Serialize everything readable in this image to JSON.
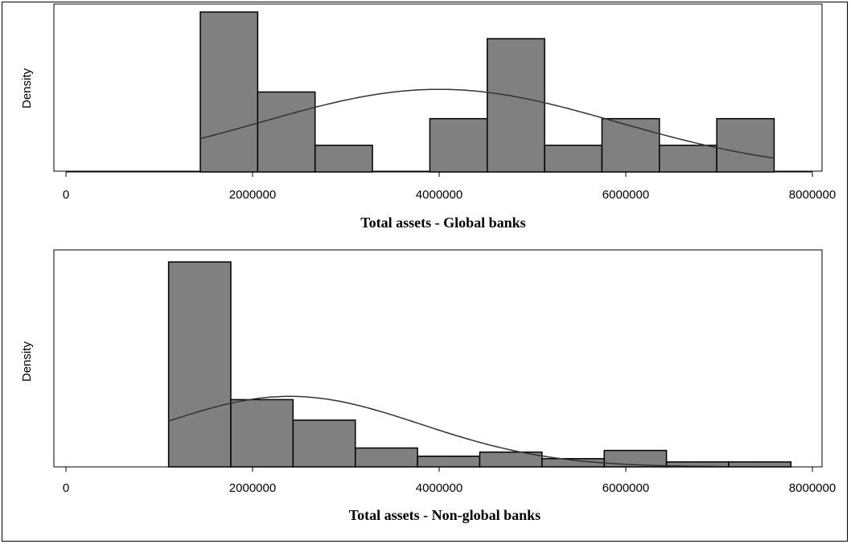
{
  "colors": {
    "bar_fill": "#808080",
    "bar_stroke": "#000000",
    "curve": "#333333",
    "axis": "#000000"
  },
  "chart_data": [
    {
      "type": "bar",
      "subtype": "histogram-with-normal-density",
      "xlabel": "Total assets - Global banks",
      "ylabel": "Density",
      "xlim": [
        0,
        8000000
      ],
      "xticks": [
        0,
        2000000,
        4000000,
        6000000,
        8000000
      ],
      "xtick_labels": [
        "0",
        "2000000",
        "4000000",
        "6000000",
        "8000000"
      ],
      "bins": [
        {
          "start": 1440000,
          "end": 2055000,
          "height": 6
        },
        {
          "start": 2055000,
          "end": 2670000,
          "height": 3
        },
        {
          "start": 2670000,
          "end": 3285000,
          "height": 1
        },
        {
          "start": 3285000,
          "end": 3900000,
          "height": 0
        },
        {
          "start": 3900000,
          "end": 4515000,
          "height": 2
        },
        {
          "start": 4515000,
          "end": 5130000,
          "height": 5
        },
        {
          "start": 5130000,
          "end": 5745000,
          "height": 1
        },
        {
          "start": 5745000,
          "end": 6360000,
          "height": 2
        },
        {
          "start": 6360000,
          "end": 6975000,
          "height": 1
        },
        {
          "start": 6975000,
          "end": 7590000,
          "height": 2
        }
      ],
      "ymax_bins": 6,
      "normal": {
        "mean": 4000000,
        "sd": 1900000,
        "peak_height": 3.1,
        "from": 1440000,
        "to": 7590000
      },
      "grid": false
    },
    {
      "type": "bar",
      "subtype": "histogram-with-normal-density",
      "xlabel": "Total assets - Non-global banks",
      "ylabel": "Density",
      "xlim": [
        0,
        8000000
      ],
      "xticks": [
        0,
        2000000,
        4000000,
        6000000,
        8000000
      ],
      "xtick_labels": [
        "0",
        "2000000",
        "4000000",
        "6000000",
        "8000000"
      ],
      "bins": [
        {
          "start": 1100000,
          "end": 1767000,
          "height": 25
        },
        {
          "start": 1767000,
          "end": 2434000,
          "height": 8.2
        },
        {
          "start": 2434000,
          "end": 3101000,
          "height": 5.7
        },
        {
          "start": 3101000,
          "end": 3768000,
          "height": 2.3
        },
        {
          "start": 3768000,
          "end": 4435000,
          "height": 1.3
        },
        {
          "start": 4435000,
          "end": 5102000,
          "height": 1.8
        },
        {
          "start": 5102000,
          "end": 5769000,
          "height": 1.0
        },
        {
          "start": 5769000,
          "end": 6436000,
          "height": 2.0
        },
        {
          "start": 6436000,
          "end": 7103000,
          "height": 0.6
        },
        {
          "start": 7103000,
          "end": 7770000,
          "height": 0.6
        }
      ],
      "ymax_bins": 25,
      "normal": {
        "mean": 2400000,
        "sd": 1400000,
        "peak_height": 8.6,
        "from": 1100000,
        "to": 7770000
      },
      "grid": false
    }
  ]
}
